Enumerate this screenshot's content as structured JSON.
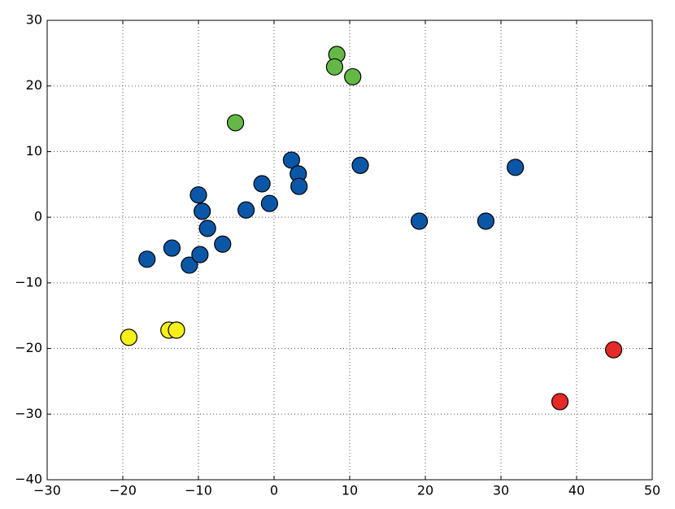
{
  "chart_data": {
    "type": "scatter",
    "xlim": [
      -30,
      50
    ],
    "ylim": [
      -40,
      30
    ],
    "xticks": [
      {
        "value": -30,
        "label": "−30"
      },
      {
        "value": -20,
        "label": "−20"
      },
      {
        "value": -10,
        "label": "−10"
      },
      0,
      10,
      20,
      30,
      40,
      50
    ],
    "yticks": [
      {
        "value": -40,
        "label": "−40"
      },
      {
        "value": -30,
        "label": "−30"
      },
      {
        "value": -20,
        "label": "−20"
      },
      {
        "value": -10,
        "label": "−10"
      },
      0,
      10,
      20,
      30
    ],
    "grid": true,
    "series": [
      {
        "color": "#0a57a8",
        "x": [
          -16.8,
          -13.5,
          -11.2,
          -9.8,
          -10.0,
          -9.5,
          -8.8,
          -6.8,
          -3.7,
          -1.6,
          -0.6,
          2.3,
          3.2,
          3.3,
          11.4,
          19.2,
          28.0,
          31.9
        ],
        "values": [
          -6.4,
          -4.7,
          -7.3,
          -5.7,
          3.4,
          0.9,
          -1.7,
          -4.1,
          1.1,
          5.1,
          2.1,
          8.7,
          6.6,
          4.7,
          7.9,
          -0.6,
          -0.6,
          7.6
        ]
      },
      {
        "color": "#64b946",
        "x": [
          -5.1,
          8.3,
          8.0,
          10.4
        ],
        "values": [
          14.4,
          24.8,
          22.9,
          21.4
        ]
      },
      {
        "color": "#f5ef1a",
        "x": [
          -19.2,
          -13.9,
          -12.9
        ],
        "values": [
          -18.3,
          -17.2,
          -17.2
        ]
      },
      {
        "color": "#e42a26",
        "x": [
          37.8,
          44.9
        ],
        "values": [
          -28.1,
          -20.2
        ]
      }
    ]
  }
}
